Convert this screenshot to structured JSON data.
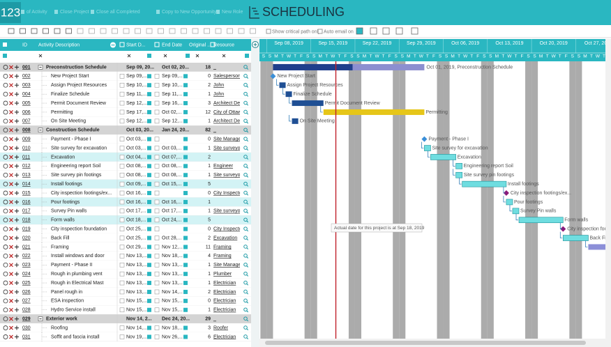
{
  "header": {
    "logo": "123",
    "title": "SCHEDULING",
    "toolbar": [
      "of Activity",
      "Close Project",
      "Close all Completed",
      "Copy to New Opportunity",
      "New Role"
    ]
  },
  "options": {
    "critical_path": "Show critical path only",
    "auto_email": "Auto email on"
  },
  "columns": {
    "id": "ID",
    "description": "Activity Description",
    "start": "Start D...",
    "end": "End Date",
    "original": "Original ...",
    "resource": "Resource"
  },
  "timeline": {
    "weeks": [
      "Sep 08, 2019",
      "Sep 15, 2019",
      "Sep 22, 2019",
      "Sep 29, 2019",
      "Oct 06, 2019",
      "Oct 13, 2019",
      "Oct 20, 2019",
      "Oct 27, 20..."
    ],
    "day_letters": [
      "S",
      "M",
      "T",
      "W",
      "T",
      "F",
      "S"
    ],
    "summary_label": "Oct 01, 2019, Preconstruction Schedule",
    "tooltip": "Actual date for this project is at Sep 18, 2019"
  },
  "rows": [
    {
      "id": "001",
      "desc": "Preconstruction Schedule",
      "start": "Sep 09, 20...",
      "end": "Oct 02, 20...",
      "duration": 18,
      "resource": "_",
      "group": true,
      "color": "#1f4f94"
    },
    {
      "id": "002",
      "desc": "New Project Start",
      "start": "Sep 09,...",
      "end": "Sep 09,...",
      "duration": 0,
      "resource": "Salesperson",
      "color": "#3a8fd8"
    },
    {
      "id": "003",
      "desc": "Assign Project Resources",
      "start": "Sep 10,...",
      "end": "Sep 10,...",
      "duration": 2,
      "resource": "John",
      "color": "#1f4f94"
    },
    {
      "id": "004",
      "desc": "Finalize Schedule",
      "start": "Sep 11,...",
      "end": "Sep 11,...",
      "duration": 1,
      "resource": "John",
      "color": "#1f4f94"
    },
    {
      "id": "005",
      "desc": "Permit Document Review",
      "start": "Sep 12,...",
      "end": "Sep 16,...",
      "duration": 3,
      "resource": "Architect Design",
      "color": "#1f4f94"
    },
    {
      "id": "006",
      "desc": "Permitting",
      "start": "Sep 17,...",
      "end": "Oct 02,...",
      "duration": 12,
      "resource": "City of Ottawa",
      "color": "#e6c619"
    },
    {
      "id": "007",
      "desc": "On Site Meeting",
      "start": "Sep 12,...",
      "end": "Sep 12,...",
      "duration": 1,
      "resource": "Architect Design",
      "color": "#1f4f94"
    },
    {
      "id": "008",
      "desc": "Construction Schedule",
      "start": "Oct 03, 20...",
      "end": "Jan 24, 20...",
      "duration": 82,
      "resource": "_",
      "group": true,
      "color": "#f39a1e"
    },
    {
      "id": "009",
      "desc": "Payment - Phase I",
      "start": "Oct 03,...",
      "end": "",
      "duration": 0,
      "resource": "Site Manager",
      "color": "#3a8fd8"
    },
    {
      "id": "010",
      "desc": "Site survey for excavation",
      "start": "Oct 03,...",
      "end": "Oct 03,...",
      "duration": 1,
      "resource": "Site surveyor",
      "color": "#6fdde0"
    },
    {
      "id": "011",
      "desc": "Excavation",
      "start": "Oct 04,...",
      "end": "Oct 07,...",
      "duration": 2,
      "resource": "",
      "highlight": true,
      "color": "#6fdde0"
    },
    {
      "id": "012",
      "desc": "Engineering report Soil",
      "start": "Oct 08,...",
      "end": "Oct 08,...",
      "duration": 1,
      "resource": "Engineer",
      "color": "#6fdde0"
    },
    {
      "id": "013",
      "desc": "Site survey pin footings",
      "start": "Oct 08,...",
      "end": "Oct 08,...",
      "duration": 1,
      "resource": "Site surveyor",
      "color": "#6fdde0"
    },
    {
      "id": "014",
      "desc": "Install footings",
      "start": "Oct 09,...",
      "end": "Oct 15,...",
      "duration": 5,
      "resource": "",
      "highlight": true,
      "color": "#6fdde0"
    },
    {
      "id": "015",
      "desc": "City inspection footings/ex...",
      "start": "Oct 16,...",
      "end": "",
      "duration": 0,
      "resource": "City Inspector",
      "color": "#8b1a7a"
    },
    {
      "id": "016",
      "desc": "Pour footings",
      "start": "Oct 16,...",
      "end": "Oct 16,...",
      "duration": 1,
      "resource": "",
      "highlight": true,
      "color": "#6fdde0"
    },
    {
      "id": "017",
      "desc": "Survey Pin walls",
      "start": "Oct 17,...",
      "end": "Oct 17,...",
      "duration": 1,
      "resource": "Site surveyor",
      "color": "#6fdde0"
    },
    {
      "id": "018",
      "desc": "Form walls",
      "start": "Oct 18,...",
      "end": "Oct 24,...",
      "duration": 5,
      "resource": "",
      "highlight": true,
      "color": "#6fdde0"
    },
    {
      "id": "019",
      "desc": "City inspection foundation",
      "start": "Oct 25,...",
      "end": "",
      "duration": 0,
      "resource": "City Inspector",
      "color": "#8b1a7a"
    },
    {
      "id": "020",
      "desc": "Back Fill",
      "start": "Oct 25,...",
      "end": "Oct 28,...",
      "duration": 2,
      "resource": "Excavation",
      "color": "#6fdde0"
    },
    {
      "id": "021",
      "desc": "Framing",
      "start": "Oct 29,...",
      "end": "Nov 12,...",
      "duration": 11,
      "resource": "Framing",
      "color": "#8c8fd8"
    },
    {
      "id": "022",
      "desc": "Install windows and door",
      "start": "Nov 13,...",
      "end": "Nov 18,...",
      "duration": 4,
      "resource": "Framing",
      "color": "#6fdde0"
    },
    {
      "id": "023",
      "desc": "Payment - Phase II",
      "start": "Nov 13,...",
      "end": "Nov 13,...",
      "duration": 1,
      "resource": "Site Manager",
      "color": "#6fdde0"
    },
    {
      "id": "024",
      "desc": "Rough in plumbing vent",
      "start": "Nov 13,...",
      "end": "Nov 13,...",
      "duration": 1,
      "resource": "Plumber",
      "color": "#6fdde0"
    },
    {
      "id": "025",
      "desc": "Rough in Electrical Mast",
      "start": "Nov 13,...",
      "end": "Nov 13,...",
      "duration": 1,
      "resource": "Electrician",
      "color": "#6fdde0"
    },
    {
      "id": "026",
      "desc": "Panel rough in",
      "start": "Nov 13,...",
      "end": "Nov 14,...",
      "duration": 2,
      "resource": "Electrician",
      "color": "#6fdde0"
    },
    {
      "id": "027",
      "desc": "ESA inspection",
      "start": "Nov 15,...",
      "end": "Nov 15,...",
      "duration": 0,
      "resource": "Electrician",
      "color": "#8b1a7a"
    },
    {
      "id": "028",
      "desc": "Hydro Service install",
      "start": "Nov 15,...",
      "end": "Nov 15,...",
      "duration": 1,
      "resource": "Electrician",
      "color": "#6fdde0"
    },
    {
      "id": "029",
      "desc": "Exterior work",
      "start": "Nov 14, 2...",
      "end": "Dec 24, 20...",
      "duration": 29,
      "resource": "_",
      "group": true,
      "color": "#f39a1e"
    },
    {
      "id": "030",
      "desc": "Roofing",
      "start": "Nov 14,...",
      "end": "Nov 18,...",
      "duration": 3,
      "resource": "Roofer",
      "color": "#6fdde0"
    },
    {
      "id": "031",
      "desc": "Soffit and fascia install",
      "start": "Nov 19,...",
      "end": "Nov 26,...",
      "duration": 6,
      "resource": "Electrician",
      "color": "#6fdde0"
    }
  ]
}
